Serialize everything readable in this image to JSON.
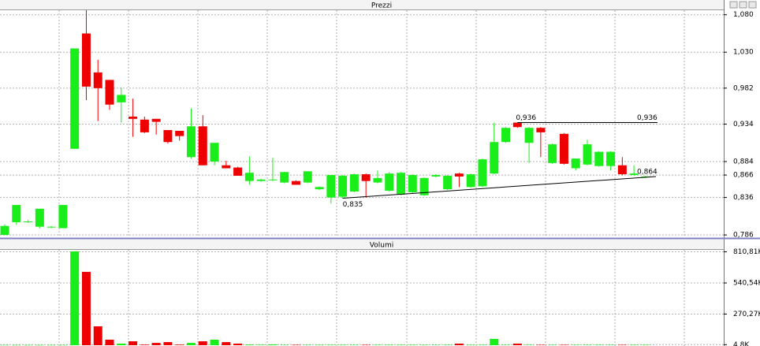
{
  "chart_data": [
    {
      "type": "candlestick",
      "title": "Prezzi",
      "ylim": [
        0.784,
        1.086
      ],
      "yticks": [
        {
          "value": 1.08,
          "label": "1,080"
        },
        {
          "value": 1.03,
          "label": "1,030"
        },
        {
          "value": 0.982,
          "label": "0,982"
        },
        {
          "value": 0.934,
          "label": "0,934"
        },
        {
          "value": 0.884,
          "label": "0,884"
        },
        {
          "value": 0.866,
          "label": "0,866"
        },
        {
          "value": 0.836,
          "label": "0,836"
        },
        {
          "value": 0.786,
          "label": "0,786"
        }
      ],
      "grid": true,
      "up_color": "#1aee1a",
      "down_color": "#ee0000",
      "open": [
        0.786,
        0.803,
        0.803,
        0.797,
        0.796,
        0.795,
        0.901,
        1.055,
        1.003,
        0.993,
        0.963,
        0.944,
        0.94,
        0.941,
        0.926,
        0.925,
        0.89,
        0.931,
        0.884,
        0.879,
        0.876,
        0.858,
        0.858,
        0.859,
        0.856,
        0.858,
        0.856,
        0.847,
        0.836,
        0.837,
        0.844,
        0.867,
        0.856,
        0.845,
        0.84,
        0.843,
        0.839,
        0.864,
        0.847,
        0.868,
        0.85,
        0.851,
        0.868,
        0.91,
        0.936,
        0.909,
        0.929,
        0.882,
        0.921,
        0.875,
        0.88,
        0.878,
        0.878,
        0.879,
        0.866,
        0.863
      ],
      "high": [
        0.8,
        0.826,
        0.806,
        0.821,
        0.798,
        0.826,
        1.035,
        1.086,
        1.02,
        0.993,
        0.983,
        0.968,
        0.944,
        0.941,
        0.926,
        0.925,
        0.955,
        0.946,
        0.909,
        0.885,
        0.877,
        0.891,
        0.861,
        0.889,
        0.87,
        0.859,
        0.871,
        0.851,
        0.866,
        0.866,
        0.868,
        0.868,
        0.872,
        0.87,
        0.87,
        0.867,
        0.863,
        0.867,
        0.866,
        0.869,
        0.868,
        0.888,
        0.936,
        0.93,
        0.936,
        0.93,
        0.93,
        0.908,
        0.922,
        0.888,
        0.913,
        0.898,
        0.898,
        0.89,
        0.879,
        0.865
      ],
      "low": [
        0.786,
        0.8,
        0.802,
        0.795,
        0.795,
        0.795,
        0.901,
        0.966,
        0.938,
        0.953,
        0.936,
        0.917,
        0.922,
        0.92,
        0.908,
        0.912,
        0.888,
        0.879,
        0.879,
        0.875,
        0.865,
        0.853,
        0.857,
        0.858,
        0.855,
        0.853,
        0.855,
        0.846,
        0.828,
        0.835,
        0.843,
        0.836,
        0.855,
        0.844,
        0.839,
        0.842,
        0.838,
        0.863,
        0.846,
        0.85,
        0.849,
        0.85,
        0.867,
        0.909,
        0.929,
        0.882,
        0.89,
        0.881,
        0.88,
        0.872,
        0.879,
        0.877,
        0.872,
        0.866,
        0.865,
        0.862
      ],
      "close": [
        0.798,
        0.826,
        0.804,
        0.821,
        0.797,
        0.826,
        1.035,
        0.984,
        0.982,
        0.96,
        0.973,
        0.941,
        0.923,
        0.937,
        0.91,
        0.918,
        0.931,
        0.879,
        0.909,
        0.875,
        0.865,
        0.869,
        0.86,
        0.86,
        0.87,
        0.853,
        0.871,
        0.85,
        0.866,
        0.865,
        0.867,
        0.858,
        0.862,
        0.868,
        0.869,
        0.866,
        0.862,
        0.866,
        0.865,
        0.864,
        0.867,
        0.887,
        0.91,
        0.929,
        0.93,
        0.929,
        0.923,
        0.907,
        0.881,
        0.888,
        0.907,
        0.897,
        0.897,
        0.867,
        0.868,
        0.864
      ],
      "annotations": [
        {
          "label": "0,835",
          "value": 0.835
        },
        {
          "label": "0,936",
          "value": 0.936
        },
        {
          "label": "0,936",
          "value": 0.936
        },
        {
          "label": "0,864",
          "value": 0.864
        }
      ]
    },
    {
      "type": "bar",
      "title": "Volumi",
      "ylim": [
        0,
        835
      ],
      "yticks": [
        {
          "value": 810.81,
          "label": "810,81K"
        },
        {
          "value": 540.54,
          "label": "540,54K"
        },
        {
          "value": 270.27,
          "label": "270,27K"
        },
        {
          "value": 4.8,
          "label": "4,8K"
        }
      ],
      "grid": true,
      "values": [
        2,
        2,
        2,
        2,
        2,
        2,
        815,
        637,
        164,
        48,
        14,
        34,
        5,
        20,
        27,
        5,
        20,
        34,
        48,
        27,
        14,
        5,
        4,
        7,
        3,
        3,
        3,
        3,
        3,
        3,
        3,
        3,
        3,
        3,
        3,
        3,
        3,
        3,
        3,
        14,
        3,
        3,
        55,
        3,
        14,
        3,
        3,
        3,
        3,
        3,
        3,
        3,
        3,
        3,
        3,
        3
      ]
    }
  ]
}
